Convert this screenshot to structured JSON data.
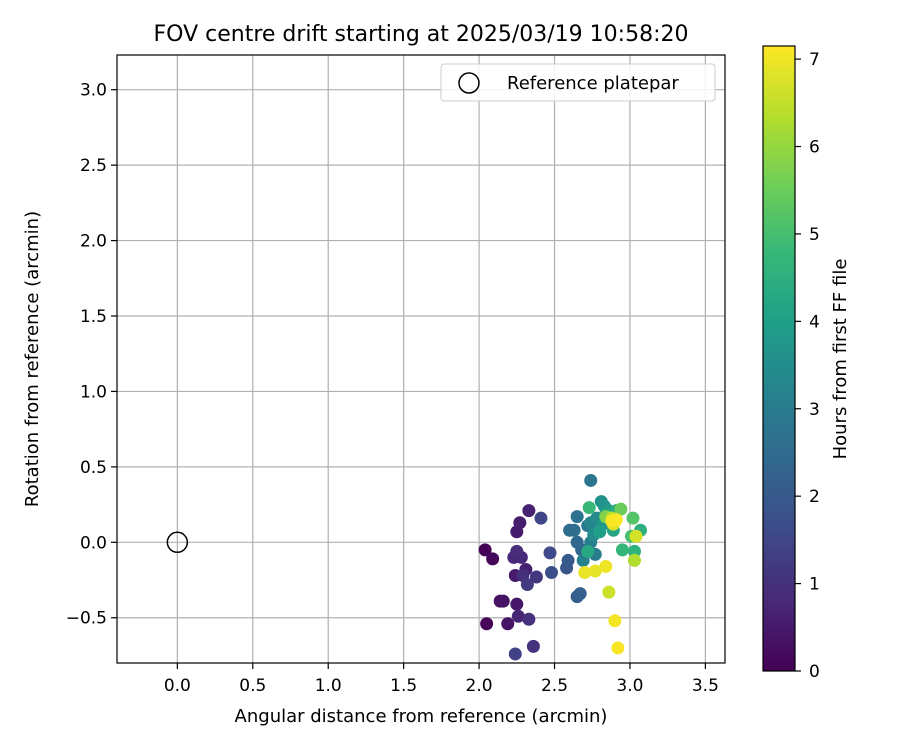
{
  "chart_data": {
    "type": "scatter",
    "title": "FOV centre drift starting at 2025/03/19 10:58:20",
    "xlabel": "Angular distance from reference (arcmin)",
    "ylabel": "Rotation from reference (arcmin)",
    "xlim": [
      -0.4,
      3.63
    ],
    "ylim": [
      -0.8,
      3.23
    ],
    "xticks": [
      0.0,
      0.5,
      1.0,
      1.5,
      2.0,
      2.5,
      3.0,
      3.5
    ],
    "xtick_labels": [
      "0.0",
      "0.5",
      "1.0",
      "1.5",
      "2.0",
      "2.5",
      "3.0",
      "3.5"
    ],
    "yticks": [
      -0.5,
      0.0,
      0.5,
      1.0,
      1.5,
      2.0,
      2.5,
      3.0
    ],
    "ytick_labels": [
      "−0.5",
      "0.0",
      "0.5",
      "1.0",
      "1.5",
      "2.0",
      "2.5",
      "3.0"
    ],
    "grid": true,
    "legend": {
      "position": "top-right",
      "entries": [
        "Reference platepar"
      ]
    },
    "reference_point": {
      "x": 0.0,
      "y": 0.0,
      "marker": "open-circle"
    },
    "colorbar": {
      "label": "Hours from first FF file",
      "range": [
        0,
        7.15
      ],
      "ticks": [
        0,
        1,
        2,
        3,
        4,
        5,
        6,
        7
      ],
      "tick_labels": [
        "0",
        "1",
        "2",
        "3",
        "4",
        "5",
        "6",
        "7"
      ],
      "colormap": "viridis",
      "stops": [
        "#440154",
        "#482878",
        "#3e4a89",
        "#31688e",
        "#26828e",
        "#1f9e89",
        "#35b779",
        "#6ece58",
        "#b5de2b",
        "#fde725"
      ]
    },
    "series": [
      {
        "points": [
          {
            "x": 2.04,
            "y": -0.05,
            "c": 0.05
          },
          {
            "x": 2.09,
            "y": -0.11,
            "c": 0.15
          },
          {
            "x": 2.05,
            "y": -0.54,
            "c": 0.1
          },
          {
            "x": 2.14,
            "y": -0.39,
            "c": 0.3
          },
          {
            "x": 2.16,
            "y": -0.39,
            "c": 0.35
          },
          {
            "x": 2.19,
            "y": -0.54,
            "c": 0.4
          },
          {
            "x": 2.25,
            "y": -0.41,
            "c": 0.45
          },
          {
            "x": 2.24,
            "y": -0.22,
            "c": 0.5
          },
          {
            "x": 2.25,
            "y": 0.07,
            "c": 0.55
          },
          {
            "x": 2.27,
            "y": 0.13,
            "c": 0.6
          },
          {
            "x": 2.31,
            "y": -0.18,
            "c": 0.65
          },
          {
            "x": 2.33,
            "y": 0.21,
            "c": 0.7
          },
          {
            "x": 2.26,
            "y": -0.49,
            "c": 0.75
          },
          {
            "x": 2.23,
            "y": -0.1,
            "c": 0.8
          },
          {
            "x": 2.28,
            "y": -0.1,
            "c": 0.85
          },
          {
            "x": 2.25,
            "y": -0.06,
            "c": 0.9
          },
          {
            "x": 2.29,
            "y": -0.22,
            "c": 0.95
          },
          {
            "x": 2.33,
            "y": -0.51,
            "c": 1.0
          },
          {
            "x": 2.36,
            "y": -0.69,
            "c": 1.05
          },
          {
            "x": 2.38,
            "y": -0.23,
            "c": 1.15
          },
          {
            "x": 2.32,
            "y": -0.28,
            "c": 1.25
          },
          {
            "x": 2.24,
            "y": -0.74,
            "c": 1.4
          },
          {
            "x": 2.41,
            "y": 0.16,
            "c": 1.5
          },
          {
            "x": 2.47,
            "y": -0.07,
            "c": 1.6
          },
          {
            "x": 2.48,
            "y": -0.2,
            "c": 1.7
          },
          {
            "x": 2.58,
            "y": -0.17,
            "c": 1.9
          },
          {
            "x": 2.59,
            "y": -0.12,
            "c": 2.0
          },
          {
            "x": 2.65,
            "y": -0.36,
            "c": 2.1
          },
          {
            "x": 2.67,
            "y": -0.34,
            "c": 2.2
          },
          {
            "x": 2.68,
            "y": -0.05,
            "c": 2.3
          },
          {
            "x": 2.65,
            "y": 0.0,
            "c": 2.4
          },
          {
            "x": 2.6,
            "y": 0.08,
            "c": 2.5
          },
          {
            "x": 2.63,
            "y": 0.08,
            "c": 2.6
          },
          {
            "x": 2.65,
            "y": 0.17,
            "c": 2.7
          },
          {
            "x": 2.74,
            "y": 0.41,
            "c": 2.8
          },
          {
            "x": 2.72,
            "y": 0.11,
            "c": 2.9
          },
          {
            "x": 2.77,
            "y": -0.08,
            "c": 3.0
          },
          {
            "x": 2.74,
            "y": 0.0,
            "c": 3.1
          },
          {
            "x": 2.69,
            "y": -0.12,
            "c": 3.2
          },
          {
            "x": 2.74,
            "y": 0.13,
            "c": 3.3
          },
          {
            "x": 2.78,
            "y": 0.16,
            "c": 3.4
          },
          {
            "x": 2.76,
            "y": 0.05,
            "c": 3.5
          },
          {
            "x": 2.81,
            "y": 0.27,
            "c": 3.6
          },
          {
            "x": 2.83,
            "y": 0.24,
            "c": 3.7
          },
          {
            "x": 2.82,
            "y": 0.12,
            "c": 3.8
          },
          {
            "x": 2.86,
            "y": 0.21,
            "c": 3.9
          },
          {
            "x": 2.8,
            "y": 0.07,
            "c": 4.0
          },
          {
            "x": 2.84,
            "y": 0.19,
            "c": 4.1
          },
          {
            "x": 2.89,
            "y": 0.08,
            "c": 4.2
          },
          {
            "x": 2.72,
            "y": -0.06,
            "c": 4.3
          },
          {
            "x": 2.91,
            "y": 0.21,
            "c": 4.4
          },
          {
            "x": 3.07,
            "y": 0.08,
            "c": 4.5
          },
          {
            "x": 3.03,
            "y": -0.06,
            "c": 4.6
          },
          {
            "x": 2.95,
            "y": -0.05,
            "c": 4.7
          },
          {
            "x": 2.73,
            "y": 0.23,
            "c": 4.8
          },
          {
            "x": 3.01,
            "y": 0.04,
            "c": 5.0
          },
          {
            "x": 3.02,
            "y": 0.16,
            "c": 5.2
          },
          {
            "x": 2.94,
            "y": 0.22,
            "c": 5.5
          },
          {
            "x": 2.84,
            "y": 0.17,
            "c": 5.8
          },
          {
            "x": 3.03,
            "y": -0.12,
            "c": 6.3
          },
          {
            "x": 2.88,
            "y": 0.16,
            "c": 6.5
          },
          {
            "x": 2.86,
            "y": -0.33,
            "c": 6.6
          },
          {
            "x": 3.04,
            "y": 0.04,
            "c": 6.7
          },
          {
            "x": 2.89,
            "y": 0.12,
            "c": 6.8
          },
          {
            "x": 2.77,
            "y": -0.19,
            "c": 6.9
          },
          {
            "x": 2.7,
            "y": -0.2,
            "c": 6.95
          },
          {
            "x": 2.84,
            "y": -0.16,
            "c": 7.0
          },
          {
            "x": 2.9,
            "y": -0.52,
            "c": 7.05
          },
          {
            "x": 2.92,
            "y": -0.7,
            "c": 7.1
          },
          {
            "x": 2.88,
            "y": 0.14,
            "c": 7.1
          },
          {
            "x": 2.91,
            "y": 0.15,
            "c": 7.12
          }
        ]
      }
    ]
  }
}
